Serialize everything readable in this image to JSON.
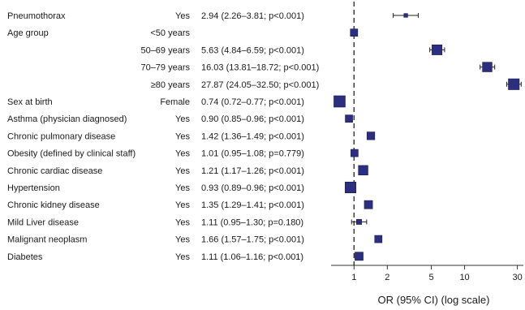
{
  "chart_data": {
    "type": "forest",
    "xscale": "log",
    "xlabel": "OR (95% CI) (log scale)",
    "xlim": [
      0.62,
      34
    ],
    "reference_line": 1,
    "xticks": [
      {
        "value": 1,
        "label": "1"
      },
      {
        "value": 2,
        "label": "2"
      },
      {
        "value": 5,
        "label": "5"
      },
      {
        "value": 10,
        "label": "10"
      },
      {
        "value": 30,
        "label": "30"
      }
    ],
    "marker_color": "#2b2f7e",
    "rows": [
      {
        "label": "Pneumothorax",
        "level": "Yes",
        "text": "2.94 (2.26–3.81; p<0.001)",
        "or": 2.94,
        "lo": 2.26,
        "hi": 3.81,
        "weight": 0.15
      },
      {
        "label": "Age group",
        "level": "<50 years",
        "text": "",
        "or": 1,
        "lo": null,
        "hi": null,
        "weight": 0.55
      },
      {
        "label": "",
        "level": "50–69 years",
        "text": "5.63 (4.84–6.59; p<0.001)",
        "or": 5.63,
        "lo": 4.84,
        "hi": 6.59,
        "weight": 0.85
      },
      {
        "label": "",
        "level": "70–79 years",
        "text": "16.03 (13.81–18.72; p<0.001)",
        "or": 16.03,
        "lo": 13.81,
        "hi": 18.72,
        "weight": 0.8
      },
      {
        "label": "",
        "level": "≥80 years",
        "text": "27.87 (24.05–32.50; p<0.001)",
        "or": 27.87,
        "lo": 24.05,
        "hi": 32.5,
        "weight": 0.95
      },
      {
        "label": "Sex at birth",
        "level": "Female",
        "text": "0.74 (0.72–0.77; p<0.001)",
        "or": 0.74,
        "lo": 0.72,
        "hi": 0.77,
        "weight": 1.0
      },
      {
        "label": "Asthma (physician diagnosed)",
        "level": "Yes",
        "text": "0.90 (0.85–0.96; p<0.001)",
        "or": 0.9,
        "lo": 0.85,
        "hi": 0.96,
        "weight": 0.55
      },
      {
        "label": "Chronic pulmonary disease",
        "level": "Yes",
        "text": "1.42 (1.36–1.49; p<0.001)",
        "or": 1.42,
        "lo": 1.36,
        "hi": 1.49,
        "weight": 0.6
      },
      {
        "label": "Obesity (defined by clinical staff)",
        "level": "Yes",
        "text": "1.01 (0.95–1.08; p=0.779)",
        "or": 1.01,
        "lo": 0.95,
        "hi": 1.08,
        "weight": 0.55
      },
      {
        "label": "Chronic cardiac disease",
        "level": "Yes",
        "text": "1.21 (1.17–1.26; p<0.001)",
        "or": 1.21,
        "lo": 1.17,
        "hi": 1.26,
        "weight": 0.8
      },
      {
        "label": "Hypertension",
        "level": "Yes",
        "text": "0.93 (0.89–0.96; p<0.001)",
        "or": 0.93,
        "lo": 0.89,
        "hi": 0.96,
        "weight": 0.95
      },
      {
        "label": "Chronic kidney disease",
        "level": "Yes",
        "text": "1.35 (1.29–1.41; p<0.001)",
        "or": 1.35,
        "lo": 1.29,
        "hi": 1.41,
        "weight": 0.65
      },
      {
        "label": "Mild Liver disease",
        "level": "Yes",
        "text": "1.11 (0.95–1.30; p=0.180)",
        "or": 1.11,
        "lo": 0.95,
        "hi": 1.3,
        "weight": 0.3
      },
      {
        "label": "Malignant neoplasm",
        "level": "Yes",
        "text": "1.66 (1.57–1.75; p<0.001)",
        "or": 1.66,
        "lo": 1.57,
        "hi": 1.75,
        "weight": 0.55
      },
      {
        "label": "Diabetes",
        "level": "Yes",
        "text": "1.11 (1.06–1.16; p<0.001)",
        "or": 1.11,
        "lo": 1.06,
        "hi": 1.16,
        "weight": 0.65
      }
    ]
  }
}
